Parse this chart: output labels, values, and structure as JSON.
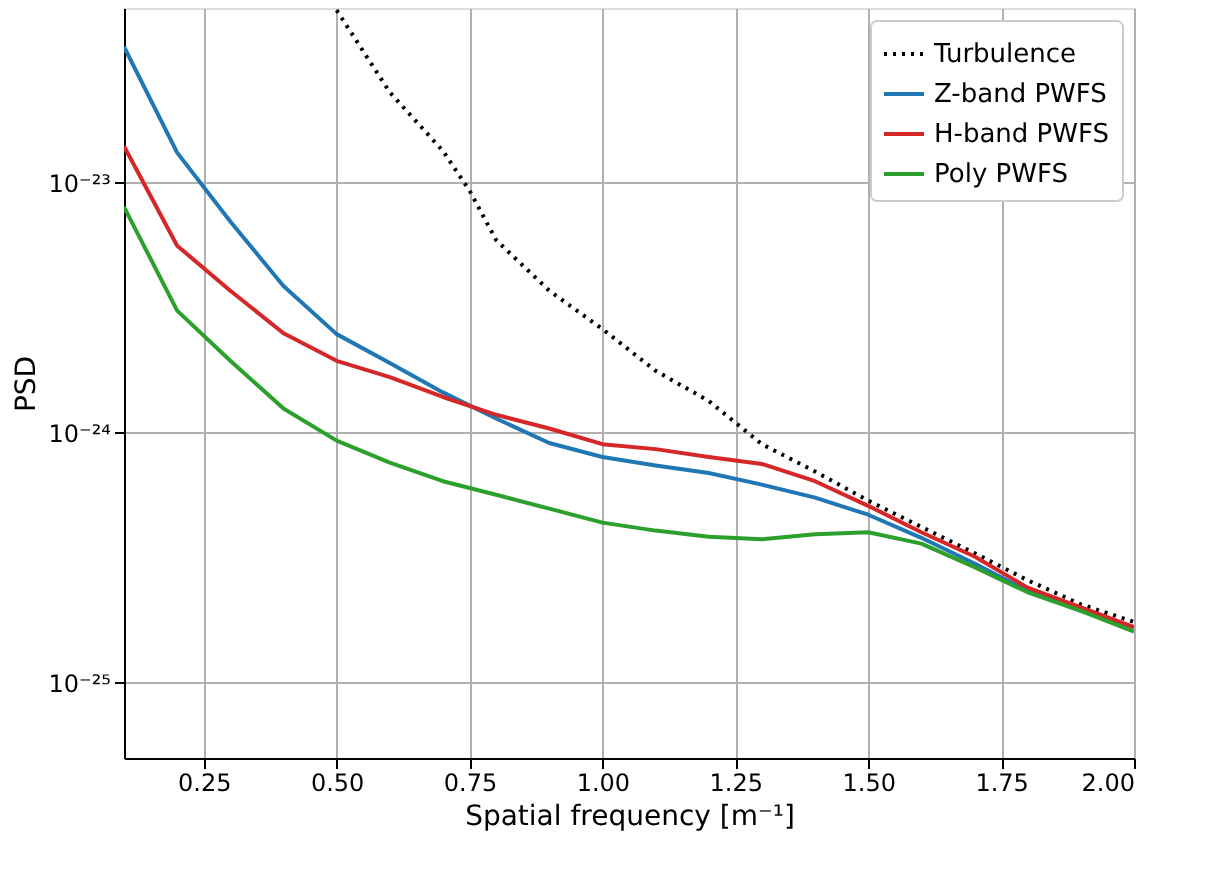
{
  "chart_data": {
    "type": "line",
    "xlabel": "Spatial frequency [m⁻¹]",
    "ylabel": "PSD",
    "log": "y",
    "grid": true,
    "legend": "top right",
    "xlim": [
      0.1,
      2.0
    ],
    "xticks": [
      {
        "value": 0.25,
        "label": "0.25"
      },
      {
        "value": 0.5,
        "label": "0.50"
      },
      {
        "value": 0.75,
        "label": "0.75"
      },
      {
        "value": 1.0,
        "label": "1.00"
      },
      {
        "value": 1.25,
        "label": "1.25"
      },
      {
        "value": 1.5,
        "label": "1.50"
      },
      {
        "value": 1.75,
        "label": "1.75"
      },
      {
        "value": 2.0,
        "label": "2.00"
      }
    ],
    "ylim": [
      5e-26,
      5e-23
    ],
    "yticks": [
      {
        "value": 1e-25,
        "label": "10⁻²⁵"
      },
      {
        "value": 1e-24,
        "label": "10⁻²⁴"
      },
      {
        "value": 1e-23,
        "label": "10⁻²³"
      }
    ],
    "series": [
      {
        "name": "Turbulence",
        "color": "#000000",
        "line_style": "dotted",
        "x": [
          0.5,
          0.6,
          0.7,
          0.75,
          0.8,
          0.9,
          1.0,
          1.1,
          1.2,
          1.3,
          1.4,
          1.5,
          1.6,
          1.7,
          1.8,
          1.9,
          2.0
        ],
        "values": [
          4.9e-23,
          2.3e-23,
          1.34e-23,
          9.3e-24,
          5.9e-24,
          3.7e-24,
          2.6e-24,
          1.77e-24,
          1.34e-24,
          9e-25,
          7e-25,
          5.35e-25,
          4.2e-25,
          3.3e-25,
          2.57e-25,
          2.06e-25,
          1.75e-25
        ]
      },
      {
        "name": "Z-band PWFS",
        "color": "#1f77b4",
        "line_style": "solid",
        "x": [
          0.1,
          0.2,
          0.3,
          0.4,
          0.5,
          0.6,
          0.7,
          0.8,
          0.9,
          1.0,
          1.1,
          1.2,
          1.3,
          1.4,
          1.5,
          1.6,
          1.7,
          1.8,
          1.9,
          2.0
        ],
        "values": [
          3.5e-23,
          1.32e-23,
          7e-24,
          3.86e-24,
          2.48e-24,
          1.9e-24,
          1.45e-24,
          1.14e-24,
          9.1e-25,
          8e-25,
          7.4e-25,
          6.9e-25,
          6.2e-25,
          5.5e-25,
          4.7e-25,
          3.8e-25,
          3e-25,
          2.33e-25,
          1.94e-25,
          1.67e-25
        ]
      },
      {
        "name": "H-band PWFS",
        "color": "#d62728",
        "line_style": "solid",
        "x": [
          0.1,
          0.2,
          0.3,
          0.4,
          0.5,
          0.6,
          0.7,
          0.8,
          0.9,
          1.0,
          1.1,
          1.2,
          1.3,
          1.4,
          1.5,
          1.6,
          1.7,
          1.8,
          1.9,
          2.0
        ],
        "values": [
          1.4e-23,
          5.6e-24,
          3.7e-24,
          2.5e-24,
          1.94e-24,
          1.67e-24,
          1.39e-24,
          1.18e-24,
          1.04e-24,
          9e-25,
          8.6e-25,
          8e-25,
          7.5e-25,
          6.4e-25,
          5.1e-25,
          4e-25,
          3.2e-25,
          2.4e-25,
          2e-25,
          1.67e-25
        ]
      },
      {
        "name": "Poly PWFS",
        "color": "#2ca02c",
        "line_style": "solid",
        "x": [
          0.1,
          0.2,
          0.3,
          0.4,
          0.5,
          0.6,
          0.7,
          0.8,
          0.9,
          1.0,
          1.1,
          1.2,
          1.3,
          1.4,
          1.5,
          1.6,
          1.7,
          1.8,
          1.9,
          2.0
        ],
        "values": [
          8e-24,
          3.08e-24,
          1.94e-24,
          1.25e-24,
          9.3e-25,
          7.6e-25,
          6.4e-25,
          5.65e-25,
          4.97e-25,
          4.37e-25,
          4.06e-25,
          3.84e-25,
          3.75e-25,
          3.93e-25,
          4e-25,
          3.6e-25,
          2.9e-25,
          2.3e-25,
          1.94e-25,
          1.6e-25
        ]
      }
    ]
  }
}
